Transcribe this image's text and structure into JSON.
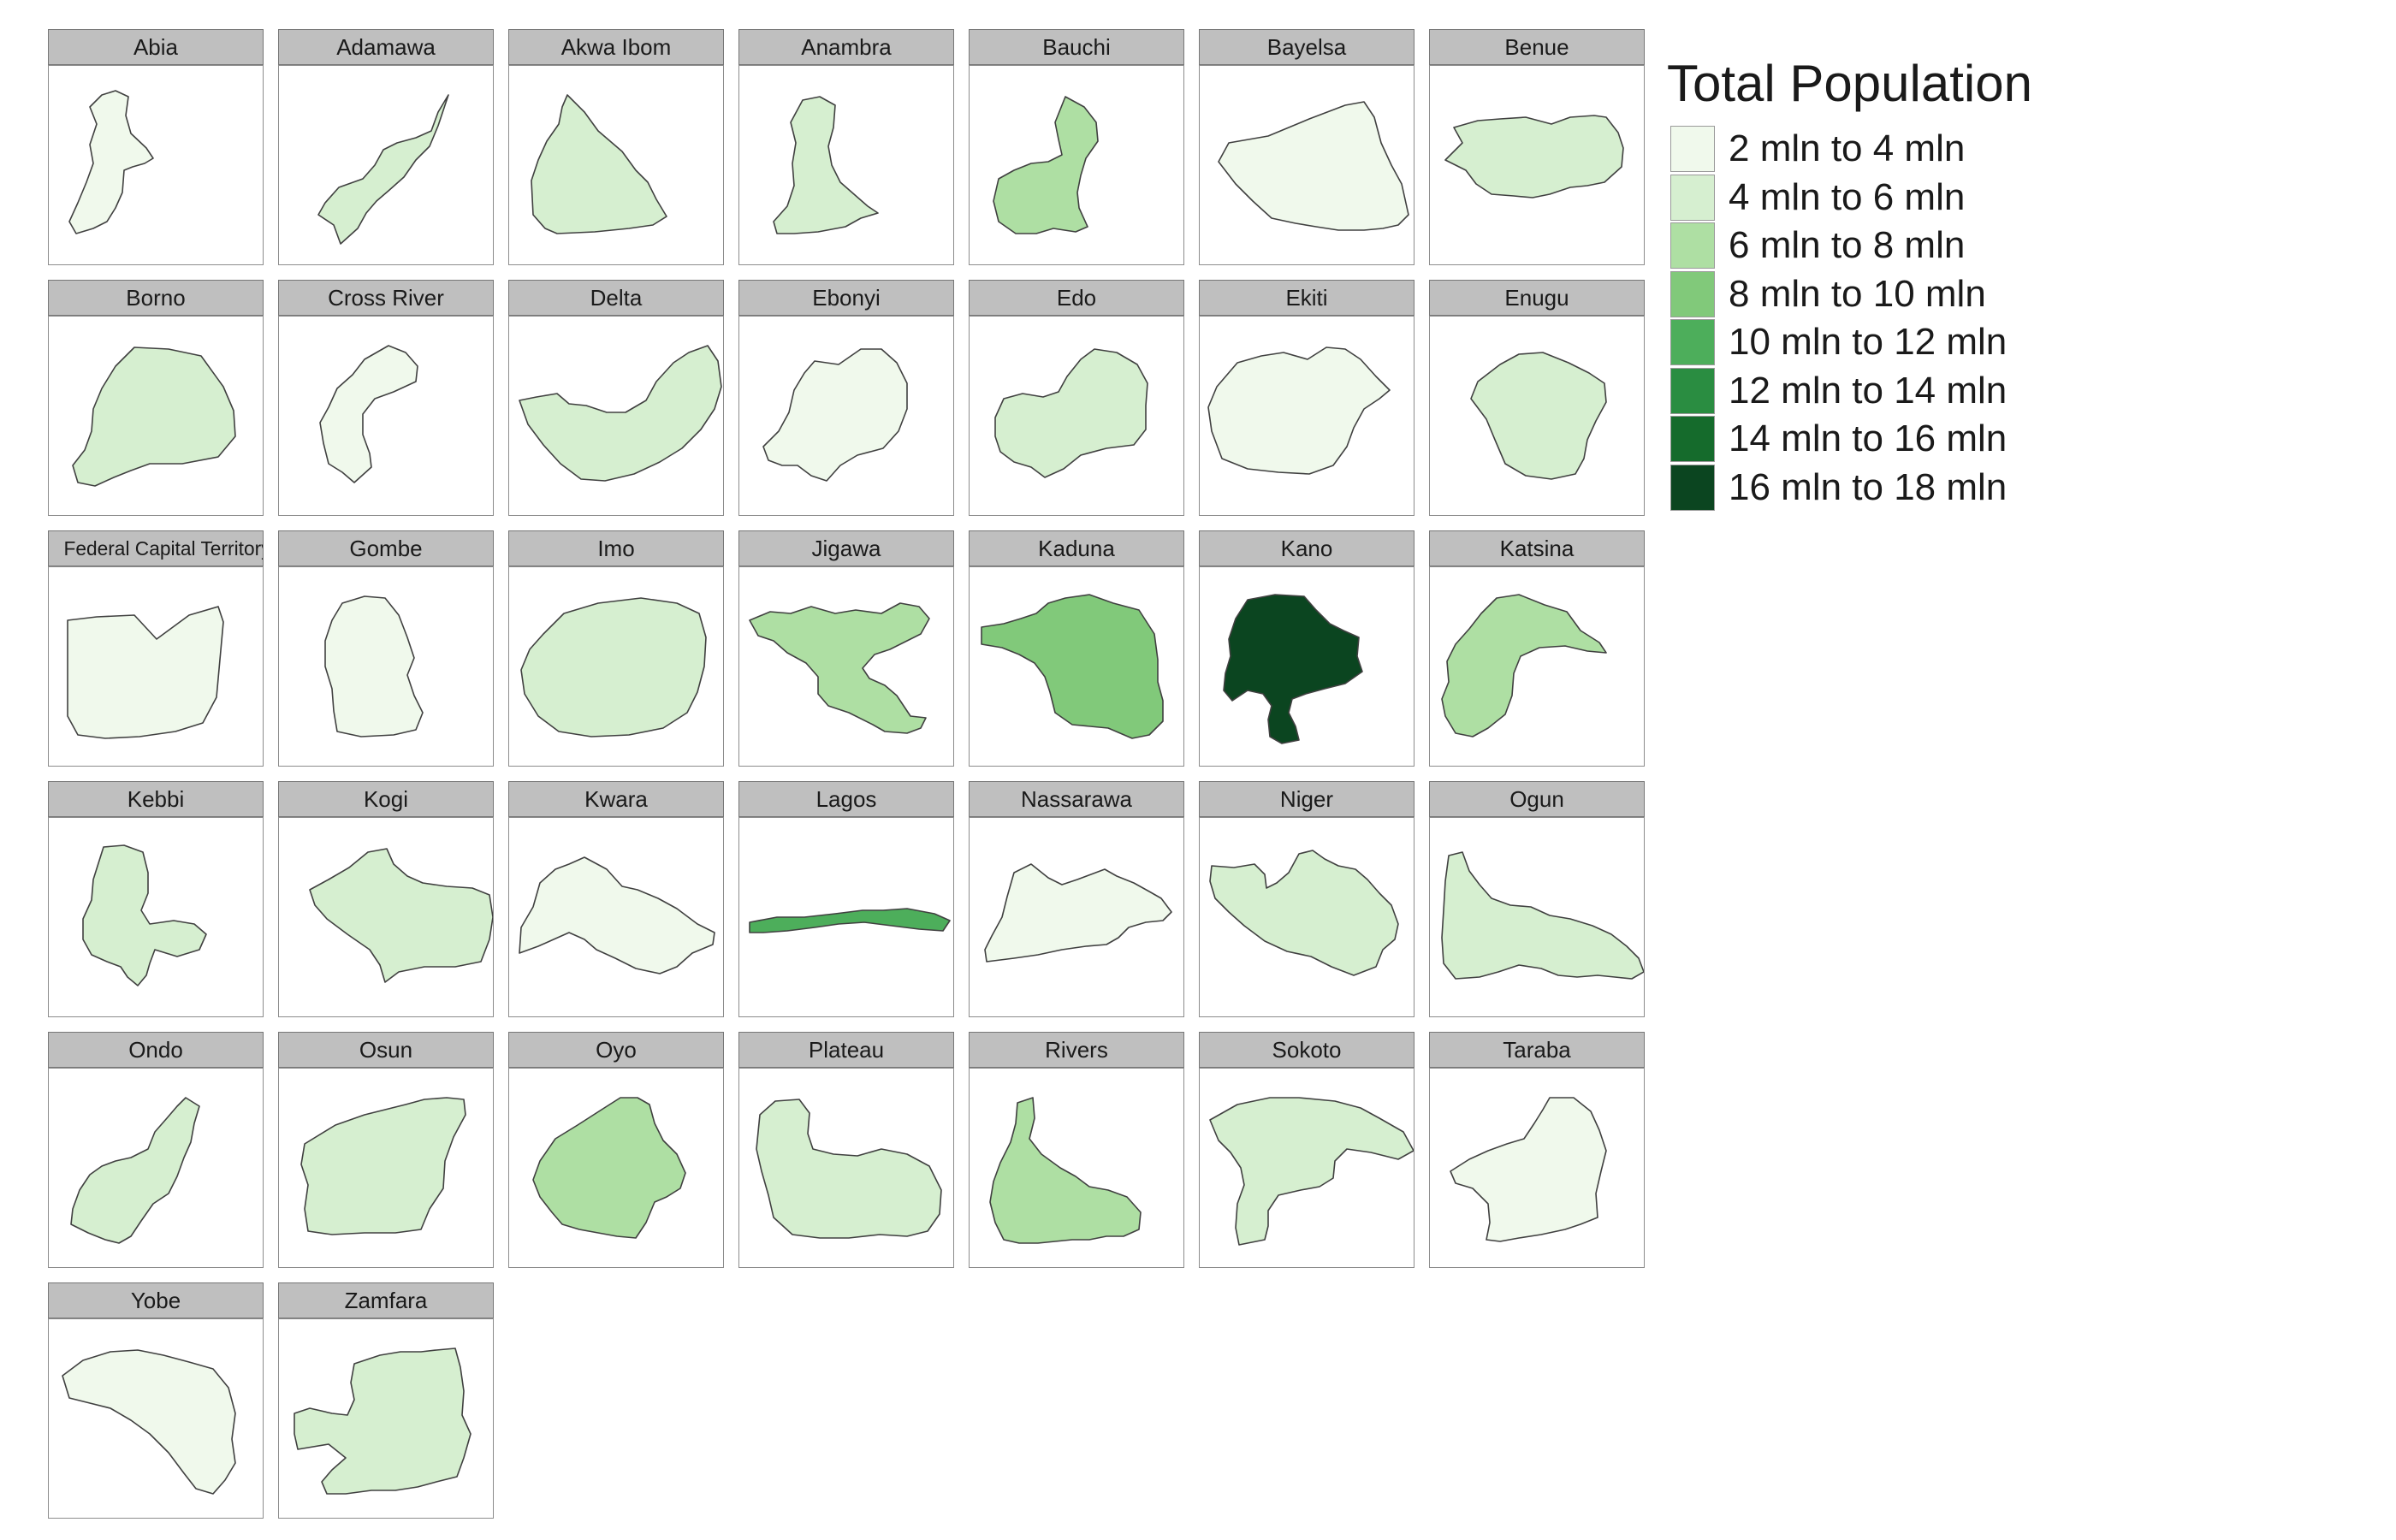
{
  "chart_data": {
    "type": "choropleth-facets",
    "title": "Total Population",
    "legend": {
      "title": "Total Population",
      "placement": "right",
      "bins": [
        {
          "label": "2 mln to 4 mln",
          "color": "#f0f9ec"
        },
        {
          "label": "4 mln to 6 mln",
          "color": "#d6efd0"
        },
        {
          "label": "6 mln to 8 mln",
          "color": "#aedfa3"
        },
        {
          "label": "8 mln to 10 mln",
          "color": "#81c97a"
        },
        {
          "label": "10 mln to 12 mln",
          "color": "#4dae5b"
        },
        {
          "label": "12 mln to 14 mln",
          "color": "#2a8d41"
        },
        {
          "label": "14 mln to 16 mln",
          "color": "#156b2c"
        },
        {
          "label": "16 mln to 18 mln",
          "color": "#0b4520"
        }
      ]
    },
    "states": [
      {
        "name": "Abia",
        "bin": 0
      },
      {
        "name": "Adamawa",
        "bin": 1
      },
      {
        "name": "Akwa Ibom",
        "bin": 1
      },
      {
        "name": "Anambra",
        "bin": 1
      },
      {
        "name": "Bauchi",
        "bin": 2
      },
      {
        "name": "Bayelsa",
        "bin": 0
      },
      {
        "name": "Benue",
        "bin": 1
      },
      {
        "name": "Borno",
        "bin": 1
      },
      {
        "name": "Cross River",
        "bin": 0
      },
      {
        "name": "Delta",
        "bin": 1
      },
      {
        "name": "Ebonyi",
        "bin": 0
      },
      {
        "name": "Edo",
        "bin": 1
      },
      {
        "name": "Ekiti",
        "bin": 0
      },
      {
        "name": "Enugu",
        "bin": 1
      },
      {
        "name": "Federal Capital Territory",
        "bin": 0
      },
      {
        "name": "Gombe",
        "bin": 0
      },
      {
        "name": "Imo",
        "bin": 1
      },
      {
        "name": "Jigawa",
        "bin": 2
      },
      {
        "name": "Kaduna",
        "bin": 3
      },
      {
        "name": "Kano",
        "bin": 7
      },
      {
        "name": "Katsina",
        "bin": 2
      },
      {
        "name": "Kebbi",
        "bin": 1
      },
      {
        "name": "Kogi",
        "bin": 1
      },
      {
        "name": "Kwara",
        "bin": 0
      },
      {
        "name": "Lagos",
        "bin": 4
      },
      {
        "name": "Nassarawa",
        "bin": 0
      },
      {
        "name": "Niger",
        "bin": 1
      },
      {
        "name": "Ogun",
        "bin": 1
      },
      {
        "name": "Ondo",
        "bin": 1
      },
      {
        "name": "Osun",
        "bin": 1
      },
      {
        "name": "Oyo",
        "bin": 2
      },
      {
        "name": "Plateau",
        "bin": 1
      },
      {
        "name": "Rivers",
        "bin": 2
      },
      {
        "name": "Sokoto",
        "bin": 1
      },
      {
        "name": "Taraba",
        "bin": 0
      },
      {
        "name": "Yobe",
        "bin": 0
      },
      {
        "name": "Zamfara",
        "bin": 1
      }
    ]
  }
}
